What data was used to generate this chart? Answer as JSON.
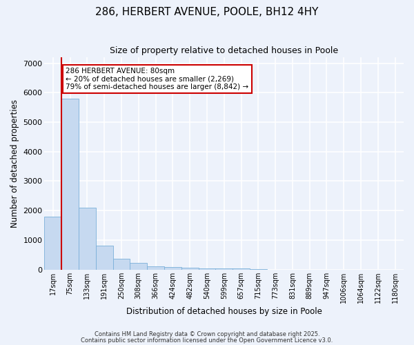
{
  "title_line1": "286, HERBERT AVENUE, POOLE, BH12 4HY",
  "title_line2": "Size of property relative to detached houses in Poole",
  "xlabel": "Distribution of detached houses by size in Poole",
  "ylabel": "Number of detached properties",
  "categories": [
    "17sqm",
    "75sqm",
    "133sqm",
    "191sqm",
    "250sqm",
    "308sqm",
    "366sqm",
    "424sqm",
    "482sqm",
    "540sqm",
    "599sqm",
    "657sqm",
    "715sqm",
    "773sqm",
    "831sqm",
    "889sqm",
    "947sqm",
    "1006sqm",
    "1064sqm",
    "1122sqm",
    "1180sqm"
  ],
  "values": [
    1800,
    5800,
    2100,
    820,
    360,
    220,
    110,
    80,
    65,
    50,
    30,
    30,
    5,
    0,
    0,
    0,
    0,
    0,
    0,
    0,
    0
  ],
  "bar_color": "#c6d9f0",
  "bar_edge_color": "#7ab0d9",
  "red_line_x": 0.5,
  "annotation_line1": "286 HERBERT AVENUE: 80sqm",
  "annotation_line2": "← 20% of detached houses are smaller (2,269)",
  "annotation_line3": "79% of semi-detached houses are larger (8,842) →",
  "annotation_box_color": "#ffffff",
  "annotation_box_edge": "#cc0000",
  "ylim": [
    0,
    7200
  ],
  "yticks": [
    0,
    1000,
    2000,
    3000,
    4000,
    5000,
    6000,
    7000
  ],
  "bg_color": "#edf2fb",
  "grid_color": "#ffffff",
  "footer_line1": "Contains HM Land Registry data © Crown copyright and database right 2025.",
  "footer_line2": "Contains public sector information licensed under the Open Government Licence v3.0."
}
